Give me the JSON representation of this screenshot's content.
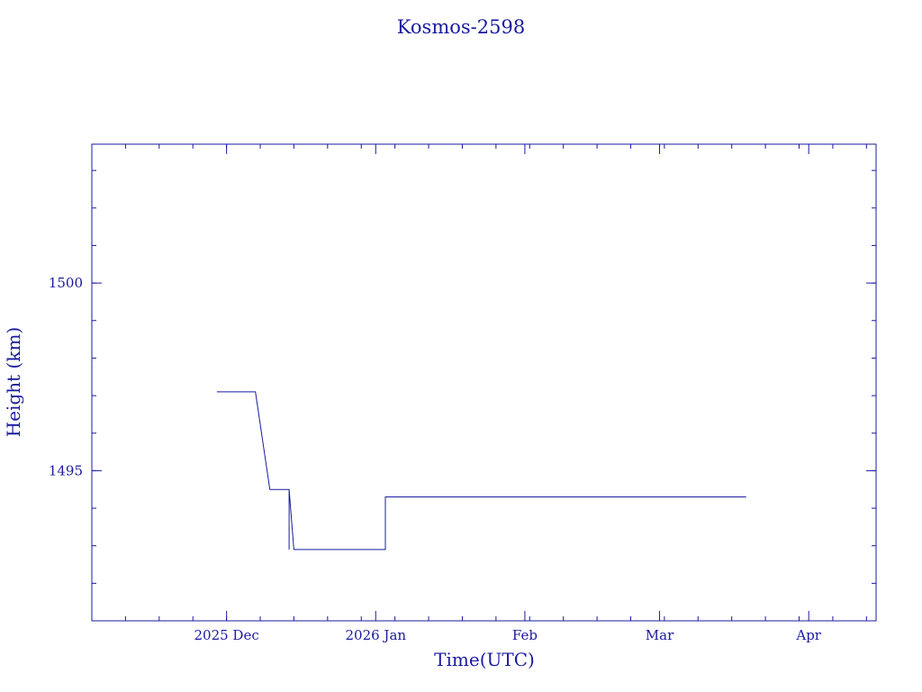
{
  "chart_data": {
    "type": "line",
    "title": "Kosmos-2598",
    "xlabel": "Time(UTC)",
    "ylabel": "Height (km)",
    "x_ticks": [
      {
        "date": "2025-12-01",
        "label": "2025 Dec"
      },
      {
        "date": "2026-01-01",
        "label": "2026 Jan"
      },
      {
        "date": "2026-02-01",
        "label": "Feb"
      },
      {
        "date": "2026-03-01",
        "label": "Mar"
      },
      {
        "date": "2026-04-01",
        "label": "Apr"
      }
    ],
    "xlim": [
      "2025-11-03",
      "2026-04-15"
    ],
    "y_ticks": [
      1495,
      1500
    ],
    "ylim": [
      1491.0,
      1503.7
    ],
    "series": [
      {
        "color": "#1a1aa0",
        "points": [
          {
            "x": "2025-11-29",
            "y": 1497.1
          },
          {
            "x": "2025-12-07",
            "y": 1497.1
          },
          {
            "x": "2025-12-10",
            "y": 1494.5
          },
          {
            "x": "2025-12-14",
            "y": 1494.5
          },
          {
            "x": "2025-12-14",
            "y": 1492.9
          },
          {
            "x": "2025-12-14",
            "y": 1494.5
          },
          {
            "x": "2025-12-15",
            "y": 1492.9
          },
          {
            "x": "2026-01-03",
            "y": 1492.9
          },
          {
            "x": "2026-01-03",
            "y": 1494.3
          },
          {
            "x": "2026-03-19",
            "y": 1494.3
          }
        ]
      }
    ],
    "grid": false,
    "legend": "none"
  }
}
